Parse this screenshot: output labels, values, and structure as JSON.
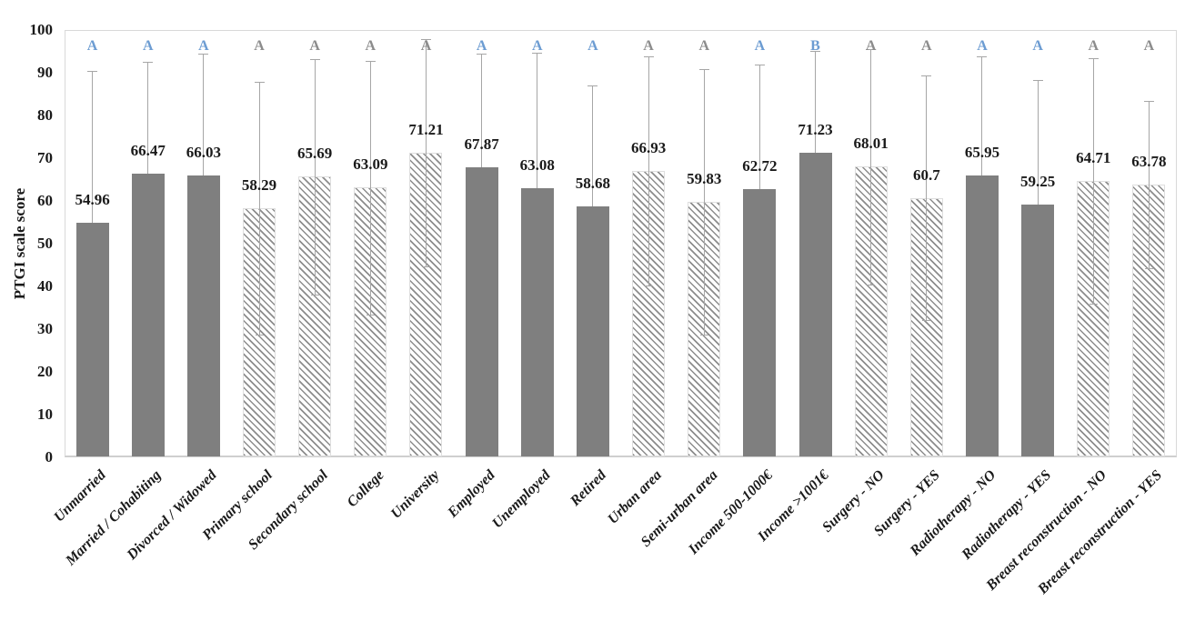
{
  "figure": {
    "y_axis_title": "PTGI scale score"
  },
  "colors": {
    "solid_bar": "#7f7f7f",
    "hatch_line": "#8c8c8c",
    "error_bar": "#a6a6a6",
    "letter_blue": "#6c9cd2",
    "letter_gray": "#8c8c8c",
    "plot_border": "#d9d9d9",
    "text": "#1a1a1a"
  },
  "chart_data": {
    "type": "bar",
    "title": "",
    "xlabel": "",
    "ylabel": "PTGI scale score",
    "ylim": [
      0,
      100
    ],
    "y_ticks": [
      0,
      10,
      20,
      30,
      40,
      50,
      60,
      70,
      80,
      90,
      100
    ],
    "grid": false,
    "legend": "none",
    "categories": [
      "Unmarried",
      "Married / Cohabiting",
      "Divorced / Widowed",
      "Primary school",
      "Secondary school",
      "College",
      "University",
      "Employed",
      "Unemployed",
      "Retired",
      "Urban area",
      "Semi-urban area",
      "Income 500-1000€",
      "Income >1001€",
      "Surgery - NO",
      "Surgery - YES",
      "Radiotherapy - NO",
      "Radiotherapy - YES",
      "Breast reconstruction - NO",
      "Breast reconstruction - YES"
    ],
    "values": [
      54.96,
      66.47,
      66.03,
      58.29,
      65.69,
      63.09,
      71.21,
      67.87,
      63.08,
      58.68,
      66.93,
      59.83,
      62.72,
      71.23,
      68.01,
      60.7,
      65.95,
      59.25,
      64.71,
      63.78
    ],
    "value_labels": [
      "54.96",
      "66.47",
      "66.03",
      "58.29",
      "65.69",
      "63.09",
      "71.21",
      "67.87",
      "63.08",
      "58.68",
      "66.93",
      "59.83",
      "62.72",
      "71.23",
      "68.01",
      "60.7",
      "65.95",
      "59.25",
      "64.71",
      "63.78"
    ],
    "error_bars_symmetric": true,
    "error_values": [
      35.4,
      26.1,
      28.4,
      29.6,
      27.6,
      29.7,
      26.6,
      26.5,
      31.5,
      28.3,
      26.8,
      31.1,
      29.3,
      23.9,
      27.6,
      28.6,
      27.9,
      29.1,
      28.8,
      19.6
    ],
    "bar_styles": [
      "solid",
      "solid",
      "solid",
      "hatched",
      "hatched",
      "hatched",
      "hatched",
      "solid",
      "solid",
      "solid",
      "hatched",
      "hatched",
      "solid",
      "solid",
      "hatched",
      "hatched",
      "solid",
      "solid",
      "hatched",
      "hatched"
    ],
    "significance_letters": [
      "A",
      "A",
      "A",
      "A",
      "A",
      "A",
      "A",
      "A",
      "A",
      "A",
      "A",
      "A",
      "A",
      "B",
      "A",
      "A",
      "A",
      "A",
      "A",
      "A"
    ],
    "letter_colors": [
      "blue",
      "blue",
      "blue",
      "gray",
      "gray",
      "gray",
      "gray",
      "blue",
      "blue",
      "blue",
      "gray",
      "gray",
      "blue",
      "blue",
      "gray",
      "gray",
      "blue",
      "blue",
      "gray",
      "gray"
    ]
  }
}
